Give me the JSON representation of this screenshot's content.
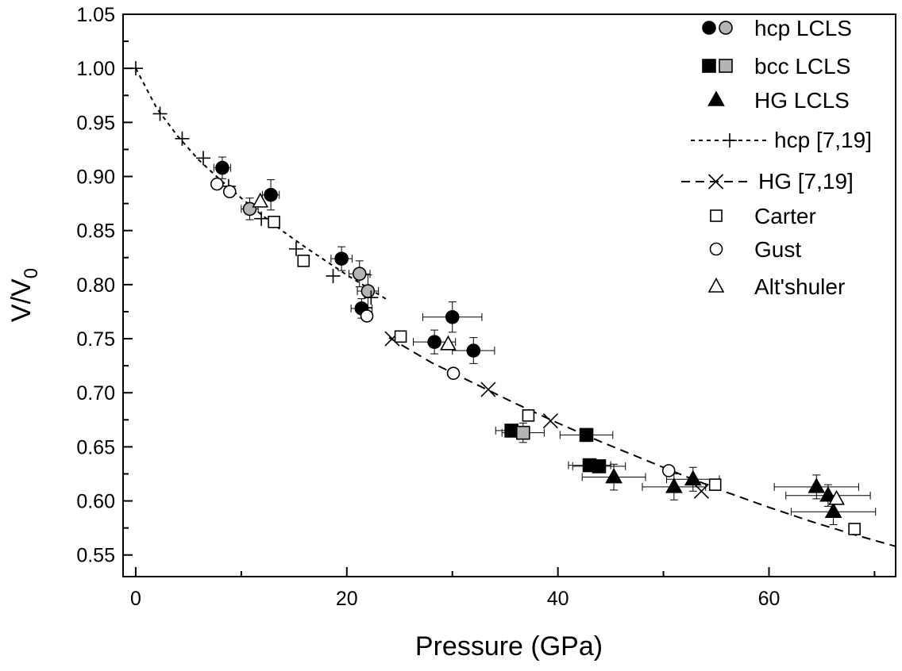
{
  "chart_data": {
    "type": "scatter",
    "xlabel": "Pressure (GPa)",
    "ylabel": "V/V0",
    "ylabel_main": "V/V",
    "ylabel_sub": "0",
    "xlim": [
      -1.2,
      72
    ],
    "ylim": [
      0.53,
      1.05
    ],
    "xticks": [
      0,
      20,
      40,
      60
    ],
    "xtick_labels": [
      "0",
      "20",
      "40",
      "60"
    ],
    "yticks": [
      0.55,
      0.6,
      0.65,
      0.7,
      0.75,
      0.8,
      0.85,
      0.9,
      0.95,
      1.0,
      1.05
    ],
    "ytick_labels": [
      "0.55",
      "0.60",
      "0.65",
      "0.70",
      "0.75",
      "0.80",
      "0.85",
      "0.90",
      "0.95",
      "1.00",
      "1.05"
    ],
    "grid": false,
    "legend_position": "top-right",
    "legend": [
      {
        "label": "hcp LCLS",
        "symbols": [
          "circle-filled",
          "circle-gray"
        ]
      },
      {
        "label": "bcc LCLS",
        "symbols": [
          "square-filled",
          "square-gray"
        ]
      },
      {
        "label": "HG LCLS",
        "symbols": [
          "triangle-filled"
        ]
      },
      {
        "label": "hcp [7,19]",
        "symbols": [
          "line-plus"
        ]
      },
      {
        "label": "HG [7,19]",
        "symbols": [
          "line-cross"
        ]
      },
      {
        "label": "Carter",
        "symbols": [
          "square-open"
        ]
      },
      {
        "label": "Gust",
        "symbols": [
          "circle-open"
        ]
      },
      {
        "label": "Alt'shuler",
        "symbols": [
          "triangle-open"
        ]
      }
    ],
    "series": [
      {
        "marker": "circle",
        "fill": "#000000",
        "points": [
          {
            "x": 8.2,
            "y": 0.908,
            "xerr": 0.8,
            "yerr": 0.01
          },
          {
            "x": 12.8,
            "y": 0.883,
            "xerr": 0.8,
            "yerr": 0.014
          },
          {
            "x": 19.5,
            "y": 0.824,
            "xerr": 1.0,
            "yerr": 0.011
          },
          {
            "x": 21.4,
            "y": 0.778,
            "xerr": 1.0,
            "yerr": 0.009
          },
          {
            "x": 28.3,
            "y": 0.747,
            "xerr": 2.0,
            "yerr": 0.011
          },
          {
            "x": 30.0,
            "y": 0.77,
            "xerr": 2.8,
            "yerr": 0.014
          },
          {
            "x": 32.0,
            "y": 0.739,
            "xerr": 2.0,
            "yerr": 0.012
          }
        ]
      },
      {
        "marker": "circle",
        "fill": "#b4b4b4",
        "points": [
          {
            "x": 10.8,
            "y": 0.87,
            "xerr": 0.8,
            "yerr": 0.01
          },
          {
            "x": 21.2,
            "y": 0.81,
            "xerr": 1.0,
            "yerr": 0.012
          },
          {
            "x": 22.0,
            "y": 0.794,
            "xerr": 1.0,
            "yerr": 0.015
          }
        ]
      },
      {
        "marker": "square",
        "fill": "#000000",
        "points": [
          {
            "x": 35.6,
            "y": 0.665,
            "xerr": 1.5,
            "yerr": 0.004
          },
          {
            "x": 42.7,
            "y": 0.661,
            "xerr": 2.5,
            "yerr": 0.004
          },
          {
            "x": 43.0,
            "y": 0.633,
            "xerr": 2.0,
            "yerr": 0.004
          },
          {
            "x": 43.9,
            "y": 0.632,
            "xerr": 2.5,
            "yerr": 0.004
          }
        ]
      },
      {
        "marker": "square",
        "fill": "#b4b4b4",
        "points": [
          {
            "x": 36.7,
            "y": 0.663,
            "xerr": 2.0,
            "yerr": 0.009
          }
        ]
      },
      {
        "marker": "triangle",
        "fill": "#000000",
        "points": [
          {
            "x": 45.3,
            "y": 0.622,
            "xerr": 3.0,
            "yerr": 0.012
          },
          {
            "x": 51.0,
            "y": 0.613,
            "xerr": 3.0,
            "yerr": 0.012
          },
          {
            "x": 52.8,
            "y": 0.62,
            "xerr": 2.5,
            "yerr": 0.011
          },
          {
            "x": 64.5,
            "y": 0.613,
            "xerr": 4.0,
            "yerr": 0.011
          },
          {
            "x": 65.6,
            "y": 0.605,
            "xerr": 4.0,
            "yerr": 0.01
          },
          {
            "x": 66.1,
            "y": 0.59,
            "xerr": 4.0,
            "yerr": 0.012
          }
        ]
      },
      {
        "marker": "plus",
        "points": [
          {
            "x": 0.0,
            "y": 1.0
          },
          {
            "x": 2.3,
            "y": 0.958
          },
          {
            "x": 4.4,
            "y": 0.935
          },
          {
            "x": 6.4,
            "y": 0.917
          },
          {
            "x": 8.8,
            "y": 0.891
          },
          {
            "x": 11.9,
            "y": 0.861
          },
          {
            "x": 15.2,
            "y": 0.833
          },
          {
            "x": 18.7,
            "y": 0.808
          },
          {
            "x": 22.3,
            "y": 0.788
          }
        ]
      },
      {
        "marker": "cross",
        "points": [
          {
            "x": 24.3,
            "y": 0.75
          },
          {
            "x": 33.4,
            "y": 0.703
          },
          {
            "x": 39.3,
            "y": 0.674
          },
          {
            "x": 53.6,
            "y": 0.609
          }
        ]
      },
      {
        "marker": "square-open",
        "points": [
          {
            "x": 13.1,
            "y": 0.858
          },
          {
            "x": 15.9,
            "y": 0.822
          },
          {
            "x": 25.1,
            "y": 0.752
          },
          {
            "x": 37.2,
            "y": 0.679
          },
          {
            "x": 54.9,
            "y": 0.615
          },
          {
            "x": 68.1,
            "y": 0.574
          }
        ]
      },
      {
        "marker": "circle-open",
        "points": [
          {
            "x": 7.7,
            "y": 0.893
          },
          {
            "x": 8.9,
            "y": 0.886
          },
          {
            "x": 21.9,
            "y": 0.771
          },
          {
            "x": 30.1,
            "y": 0.718
          },
          {
            "x": 50.5,
            "y": 0.628
          }
        ]
      },
      {
        "marker": "triangle-open",
        "points": [
          {
            "x": 11.8,
            "y": 0.877
          },
          {
            "x": 29.6,
            "y": 0.745
          },
          {
            "x": 66.4,
            "y": 0.602
          }
        ]
      }
    ],
    "fit_curves": [
      {
        "style": "hcp",
        "points": [
          {
            "x": 0.0,
            "y": 1.0
          },
          {
            "x": 2.0,
            "y": 0.963
          },
          {
            "x": 4.0,
            "y": 0.937
          },
          {
            "x": 6.0,
            "y": 0.915
          },
          {
            "x": 8.0,
            "y": 0.897
          },
          {
            "x": 10.0,
            "y": 0.88
          },
          {
            "x": 12.0,
            "y": 0.864
          },
          {
            "x": 14.0,
            "y": 0.849
          },
          {
            "x": 16.0,
            "y": 0.835
          },
          {
            "x": 18.0,
            "y": 0.822
          },
          {
            "x": 20.0,
            "y": 0.809
          },
          {
            "x": 22.0,
            "y": 0.797
          },
          {
            "x": 24.0,
            "y": 0.785
          }
        ]
      },
      {
        "style": "hg",
        "points": [
          {
            "x": 24.0,
            "y": 0.751
          },
          {
            "x": 28.0,
            "y": 0.728
          },
          {
            "x": 32.0,
            "y": 0.709
          },
          {
            "x": 36.0,
            "y": 0.69
          },
          {
            "x": 40.0,
            "y": 0.672
          },
          {
            "x": 44.0,
            "y": 0.655
          },
          {
            "x": 48.0,
            "y": 0.639
          },
          {
            "x": 52.0,
            "y": 0.623
          },
          {
            "x": 56.0,
            "y": 0.608
          },
          {
            "x": 60.0,
            "y": 0.594
          },
          {
            "x": 64.0,
            "y": 0.581
          },
          {
            "x": 68.0,
            "y": 0.569
          },
          {
            "x": 72.0,
            "y": 0.558
          }
        ]
      }
    ]
  }
}
